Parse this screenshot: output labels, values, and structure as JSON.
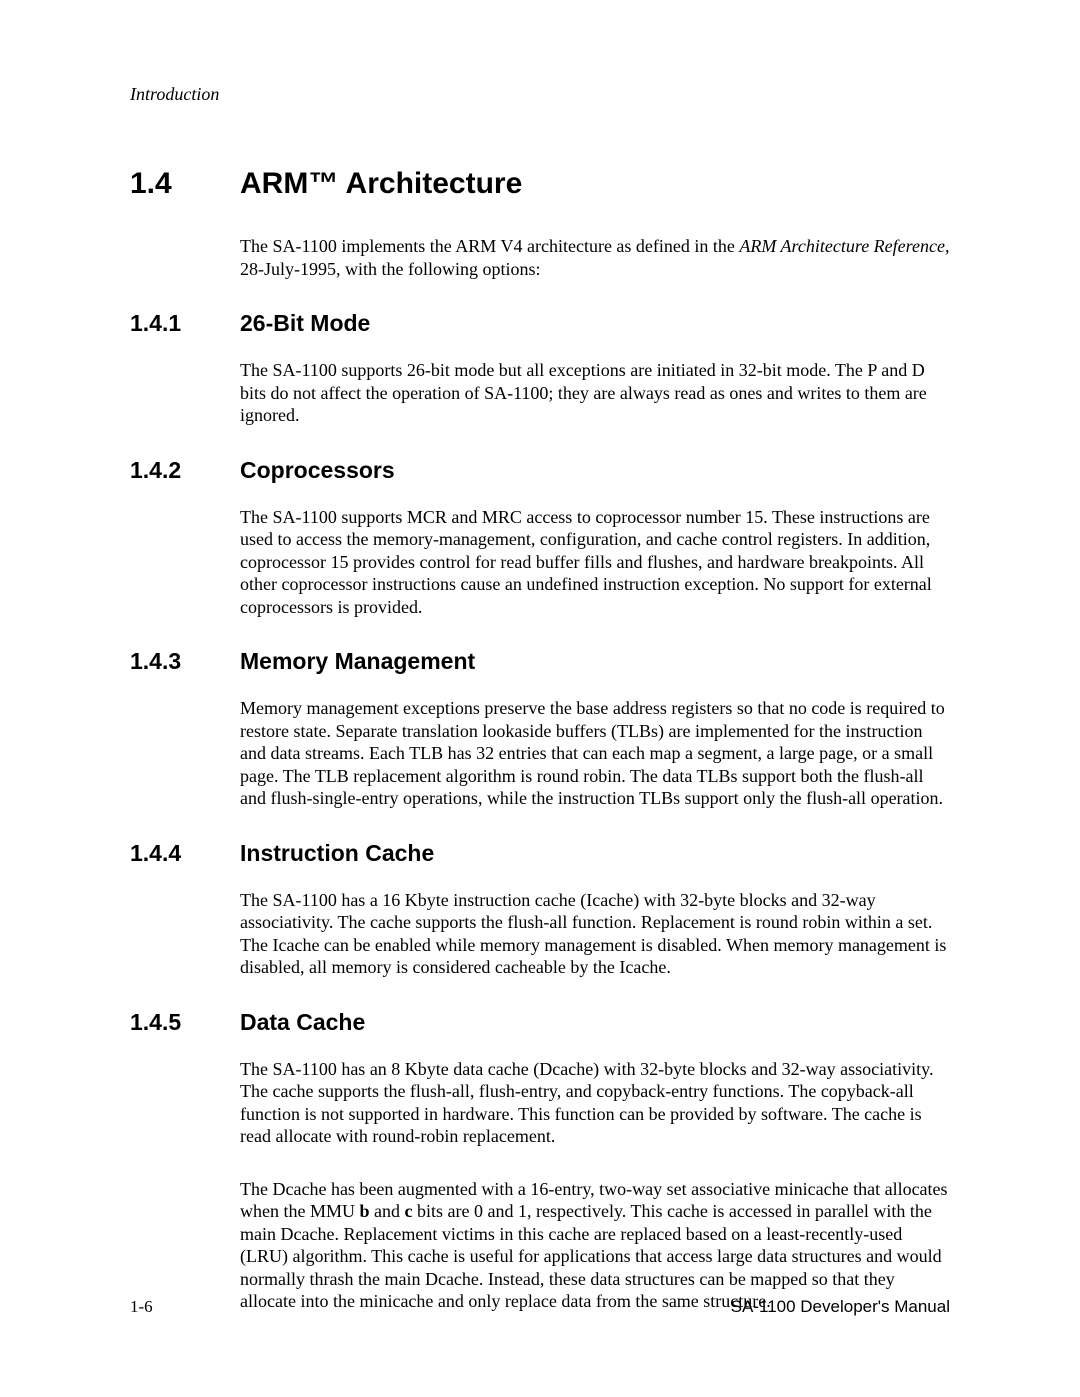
{
  "runningHead": "Introduction",
  "h1": {
    "num": "1.4",
    "title": "ARM™ Architecture"
  },
  "intro": {
    "pre": "The SA-1100 implements the ARM V4 architecture as defined in the ",
    "ital": "ARM Architecture Reference",
    "post": ", 28-July-1995, with the following options:"
  },
  "sections": {
    "s1": {
      "num": "1.4.1",
      "title": "26-Bit Mode",
      "para": "The SA-1100 supports 26-bit mode but all exceptions are initiated in 32-bit mode. The P and D bits do not affect the operation of SA-1100; they are always read as ones and writes to them are ignored."
    },
    "s2": {
      "num": "1.4.2",
      "title": "Coprocessors",
      "para": "The SA-1100 supports MCR and MRC access to coprocessor number 15. These instructions are used to access the memory-management, configuration, and cache control registers. In addition, coprocessor 15 provides control for read buffer fills and flushes, and hardware breakpoints. All other coprocessor instructions cause an undefined instruction exception. No support for external coprocessors is provided."
    },
    "s3": {
      "num": "1.4.3",
      "title": "Memory Management",
      "para": "Memory management exceptions preserve the base address registers so that no code is required to restore state. Separate translation lookaside buffers (TLBs) are implemented for the instruction and data streams. Each TLB has 32 entries that can each map a segment, a large page, or a small page. The TLB replacement algorithm is round robin. The data TLBs support both the flush-all and flush-single-entry operations, while the instruction TLBs support only the flush-all operation."
    },
    "s4": {
      "num": "1.4.4",
      "title": "Instruction Cache",
      "para": "The SA-1100 has a 16 Kbyte instruction cache (Icache) with 32-byte blocks and 32-way associativity. The cache supports the flush-all function. Replacement is round robin within a set. The Icache can be enabled while memory management is disabled. When memory management is disabled, all memory is considered cacheable by the Icache."
    },
    "s5": {
      "num": "1.4.5",
      "title": "Data Cache",
      "para1": "The SA-1100 has an 8 Kbyte data cache (Dcache) with 32-byte blocks and 32-way associativity. The cache supports the flush-all, flush-entry, and copyback-entry functions. The copyback-all function is not supported in hardware. This function can be provided by software. The cache is read allocate with round-robin replacement.",
      "para2": {
        "t1": "The Dcache has been augmented with a 16-entry, two-way set associative minicache that allocates when the MMU ",
        "b1": "b",
        "t2": " and ",
        "b2": "c",
        "t3": " bits are 0 and 1, respectively. This cache is accessed in parallel with the main Dcache. Replacement victims in this cache are replaced based on a least-recently-used (LRU) algorithm. This cache is useful for applications that access large data structures and would normally thrash the main Dcache. Instead, these data structures can be mapped so that they allocate into the minicache and only replace data from the same structure."
      }
    }
  },
  "footer": {
    "left": "1-6",
    "right": "SA-1100  Developer's Manual"
  }
}
